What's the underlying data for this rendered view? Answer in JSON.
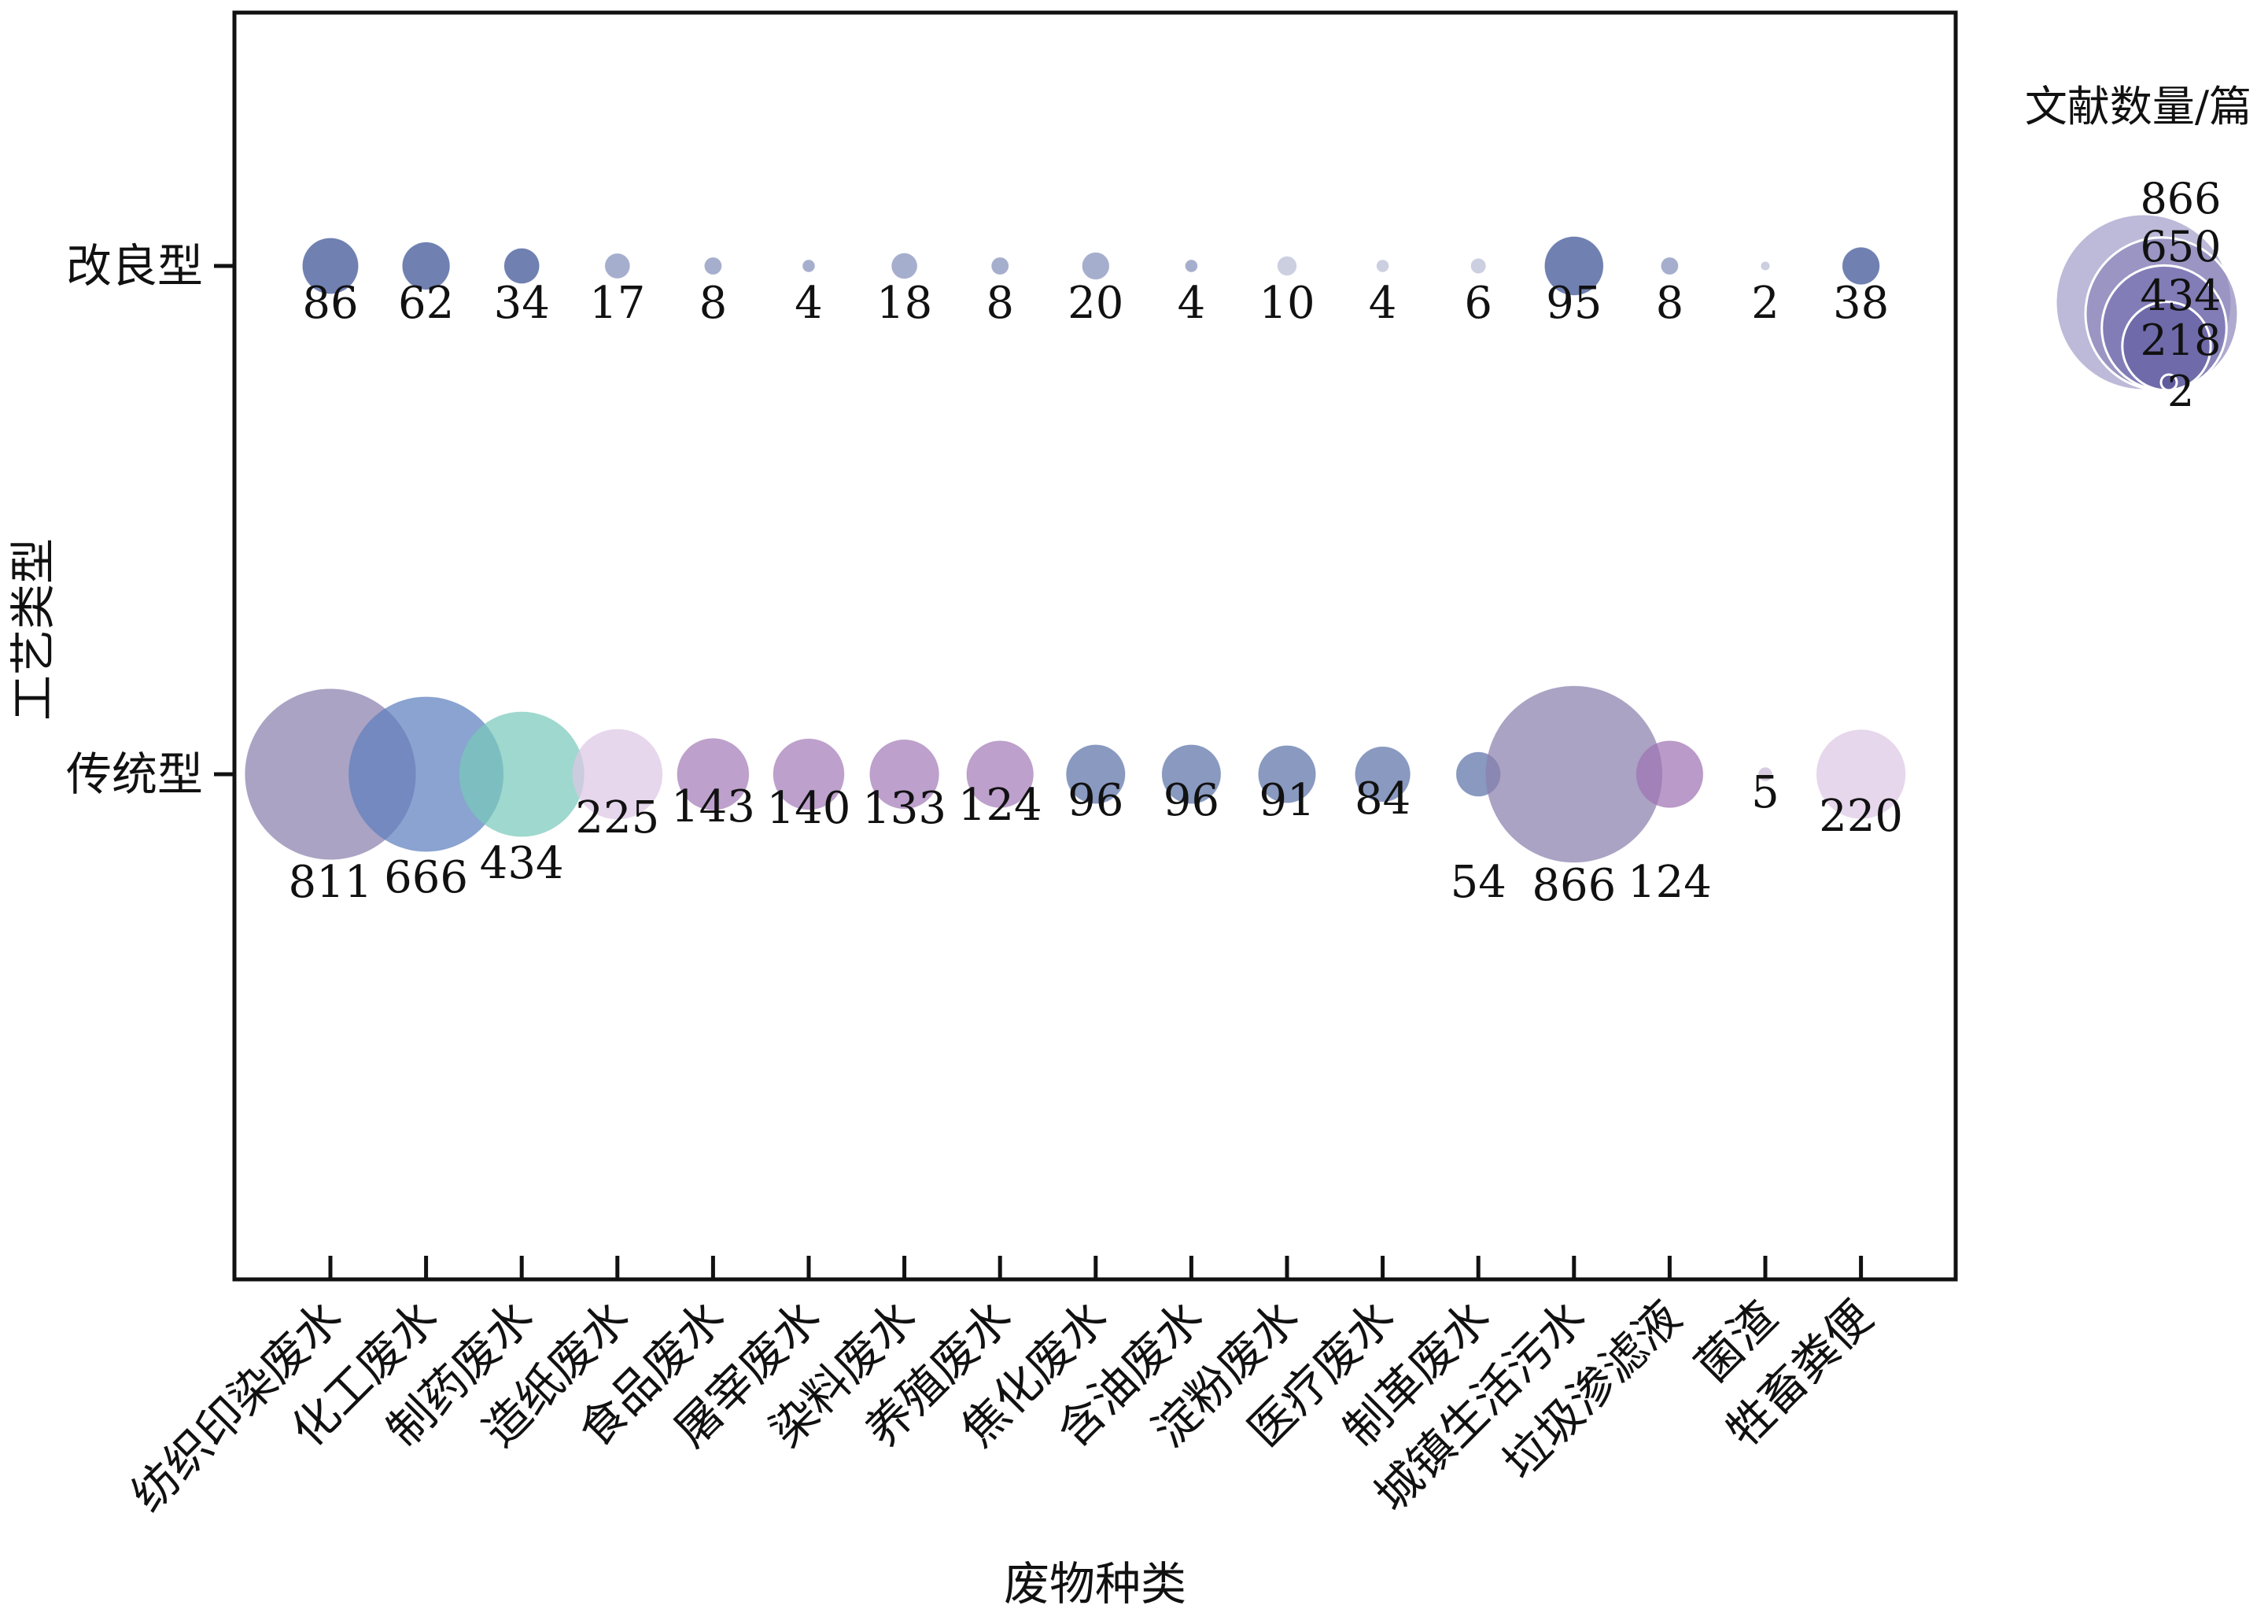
{
  "chart_data": {
    "type": "scatter",
    "subtype": "bubble",
    "xlabel": "废物种类",
    "ylabel": "工艺类型",
    "categories": [
      "纺织印染废水",
      "化工废水",
      "制药废水",
      "造纸废水",
      "食品废水",
      "屠宰废水",
      "染料废水",
      "养殖废水",
      "焦化废水",
      "含油废水",
      "淀粉废水",
      "医疗废水",
      "制革废水",
      "城镇生活污水",
      "垃圾渗滤液",
      "菌渣",
      "牲畜粪便"
    ],
    "y_categories": [
      "改良型",
      "传统型"
    ],
    "series": [
      {
        "name": "改良型",
        "values": [
          86,
          62,
          34,
          17,
          8,
          4,
          18,
          8,
          20,
          4,
          10,
          4,
          6,
          95,
          8,
          2,
          38
        ],
        "colors": [
          "#5b6ea6",
          "#5b6ea6",
          "#5b6ea6",
          "#9aa3c6",
          "#9aa3c6",
          "#9aa3c6",
          "#9aa3c6",
          "#9aa3c6",
          "#9aa3c6",
          "#9aa3c6",
          "#c4c8dc",
          "#c4c8dc",
          "#c4c8dc",
          "#5b6ea6",
          "#9aa3c6",
          "#c4c8dc",
          "#5b6ea6"
        ]
      },
      {
        "name": "传统型",
        "values": [
          811,
          666,
          434,
          225,
          143,
          140,
          133,
          124,
          96,
          96,
          91,
          84,
          54,
          866,
          124,
          5,
          220
        ],
        "colors": [
          "#8a80ad",
          "#5d7fbe",
          "#79c9bb",
          "#dcc8e4",
          "#a47bb8",
          "#a47bb8",
          "#a47bb8",
          "#a47bb8",
          "#5c71a8",
          "#5c71a8",
          "#5c71a8",
          "#5c71a8",
          "#5c71a8",
          "#8a80ad",
          "#9e73b3",
          "#c9b8d8",
          "#dcc8e4"
        ]
      }
    ],
    "legend": {
      "title": "文献数量/篇",
      "values": [
        866,
        650,
        434,
        218,
        2
      ],
      "position": "top-right"
    },
    "grid": false
  }
}
